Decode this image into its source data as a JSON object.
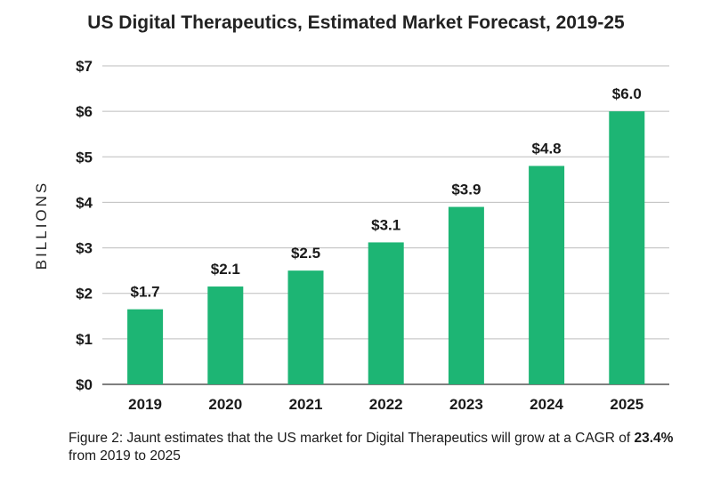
{
  "chart_data": {
    "type": "bar",
    "title": "US Digital Therapeutics, Estimated Market Forecast, 2019-25",
    "ylabel": "BILLIONS",
    "xlabel": "",
    "categories": [
      "2019",
      "2020",
      "2021",
      "2022",
      "2023",
      "2024",
      "2025"
    ],
    "values": [
      1.65,
      2.15,
      2.5,
      3.12,
      3.9,
      4.8,
      6.0
    ],
    "data_labels": [
      "$1.7",
      "$2.1",
      "$2.5",
      "$3.1",
      "$3.9",
      "$4.8",
      "$6.0"
    ],
    "ylim": [
      0,
      7
    ],
    "yticks": [
      0,
      1,
      2,
      3,
      4,
      5,
      6,
      7
    ],
    "ytick_labels": [
      "$0",
      "$1",
      "$2",
      "$3",
      "$4",
      "$5",
      "$6",
      "$7"
    ],
    "grid": true,
    "bar_color": "#1db574",
    "grid_color": "#bdbdbd"
  },
  "caption": {
    "prefix": "Figure 2: Jaunt estimates that the US market for Digital Therapeutics will grow at a CAGR of ",
    "highlight": "23.4%",
    "suffix": " from 2019 to 2025"
  }
}
